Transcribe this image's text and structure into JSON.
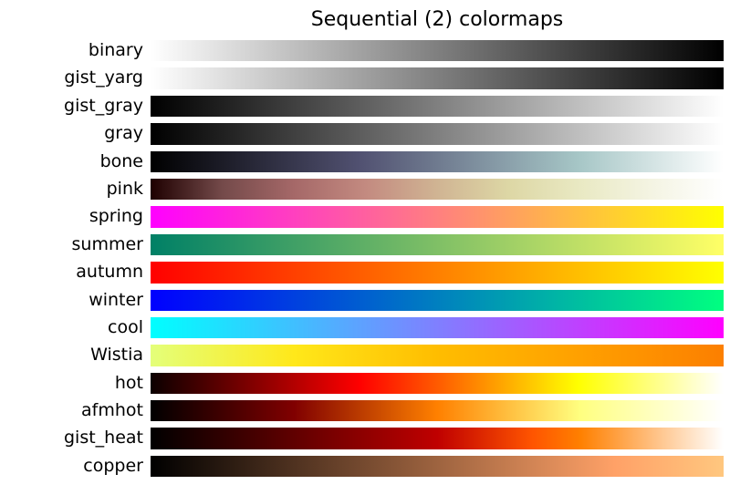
{
  "colors": {
    "background": "#ffffff",
    "text": "#000000"
  },
  "chart_data": {
    "type": "heatmap",
    "title": "Sequential (2) colormaps",
    "legend_position": "none",
    "grid": false,
    "rows": [
      {
        "label": "binary",
        "gradient_stops": [
          [
            "#ffffff",
            0
          ],
          [
            "#000000",
            100
          ]
        ]
      },
      {
        "label": "gist_yarg",
        "gradient_stops": [
          [
            "#ffffff",
            0
          ],
          [
            "#000000",
            100
          ]
        ]
      },
      {
        "label": "gist_gray",
        "gradient_stops": [
          [
            "#000000",
            0
          ],
          [
            "#ffffff",
            100
          ]
        ]
      },
      {
        "label": "gray",
        "gradient_stops": [
          [
            "#000000",
            0
          ],
          [
            "#ffffff",
            100
          ]
        ]
      },
      {
        "label": "bone",
        "gradient_stops": [
          [
            "#000000",
            0
          ],
          [
            "#515171",
            36.5
          ],
          [
            "#a6c6c6",
            74.6
          ],
          [
            "#ffffff",
            100
          ]
        ]
      },
      {
        "label": "pink",
        "gradient_stops": [
          [
            "#1e0000",
            0
          ],
          [
            "#744a4a",
            12.5
          ],
          [
            "#a56868",
            25
          ],
          [
            "#c38a80",
            37.5
          ],
          [
            "#d0b493",
            50
          ],
          [
            "#ddd7a5",
            62.5
          ],
          [
            "#e9e9c3",
            75
          ],
          [
            "#f4f4e3",
            87.5
          ],
          [
            "#ffffff",
            100
          ]
        ]
      },
      {
        "label": "spring",
        "gradient_stops": [
          [
            "#ff00ff",
            0
          ],
          [
            "#ffff00",
            100
          ]
        ]
      },
      {
        "label": "summer",
        "gradient_stops": [
          [
            "#008066",
            0
          ],
          [
            "#ffff66",
            100
          ]
        ]
      },
      {
        "label": "autumn",
        "gradient_stops": [
          [
            "#ff0000",
            0
          ],
          [
            "#ffff00",
            100
          ]
        ]
      },
      {
        "label": "winter",
        "gradient_stops": [
          [
            "#0000ff",
            0
          ],
          [
            "#00ff80",
            100
          ]
        ]
      },
      {
        "label": "cool",
        "gradient_stops": [
          [
            "#00ffff",
            0
          ],
          [
            "#ff00ff",
            100
          ]
        ]
      },
      {
        "label": "Wistia",
        "gradient_stops": [
          [
            "#e4ff7a",
            0
          ],
          [
            "#ffe81a",
            25
          ],
          [
            "#ffbd00",
            50
          ],
          [
            "#ffa000",
            75
          ],
          [
            "#fc7f00",
            100
          ]
        ]
      },
      {
        "label": "hot",
        "gradient_stops": [
          [
            "#0b0000",
            0
          ],
          [
            "#ff0000",
            36.5
          ],
          [
            "#ffff00",
            74.6
          ],
          [
            "#ffffff",
            100
          ]
        ]
      },
      {
        "label": "afmhot",
        "gradient_stops": [
          [
            "#000000",
            0
          ],
          [
            "#800000",
            25
          ],
          [
            "#ff8000",
            50
          ],
          [
            "#ffff80",
            75
          ],
          [
            "#ffffff",
            100
          ]
        ]
      },
      {
        "label": "gist_heat",
        "gradient_stops": [
          [
            "#000000",
            0
          ],
          [
            "#600000",
            25
          ],
          [
            "#bf0000",
            50
          ],
          [
            "#ff5500",
            66.7
          ],
          [
            "#ff8000",
            75
          ],
          [
            "#ffbf80",
            87.5
          ],
          [
            "#ffffff",
            100
          ]
        ]
      },
      {
        "label": "copper",
        "gradient_stops": [
          [
            "#000000",
            0
          ],
          [
            "#ffa167",
            81
          ],
          [
            "#ffc77f",
            100
          ]
        ]
      }
    ]
  }
}
